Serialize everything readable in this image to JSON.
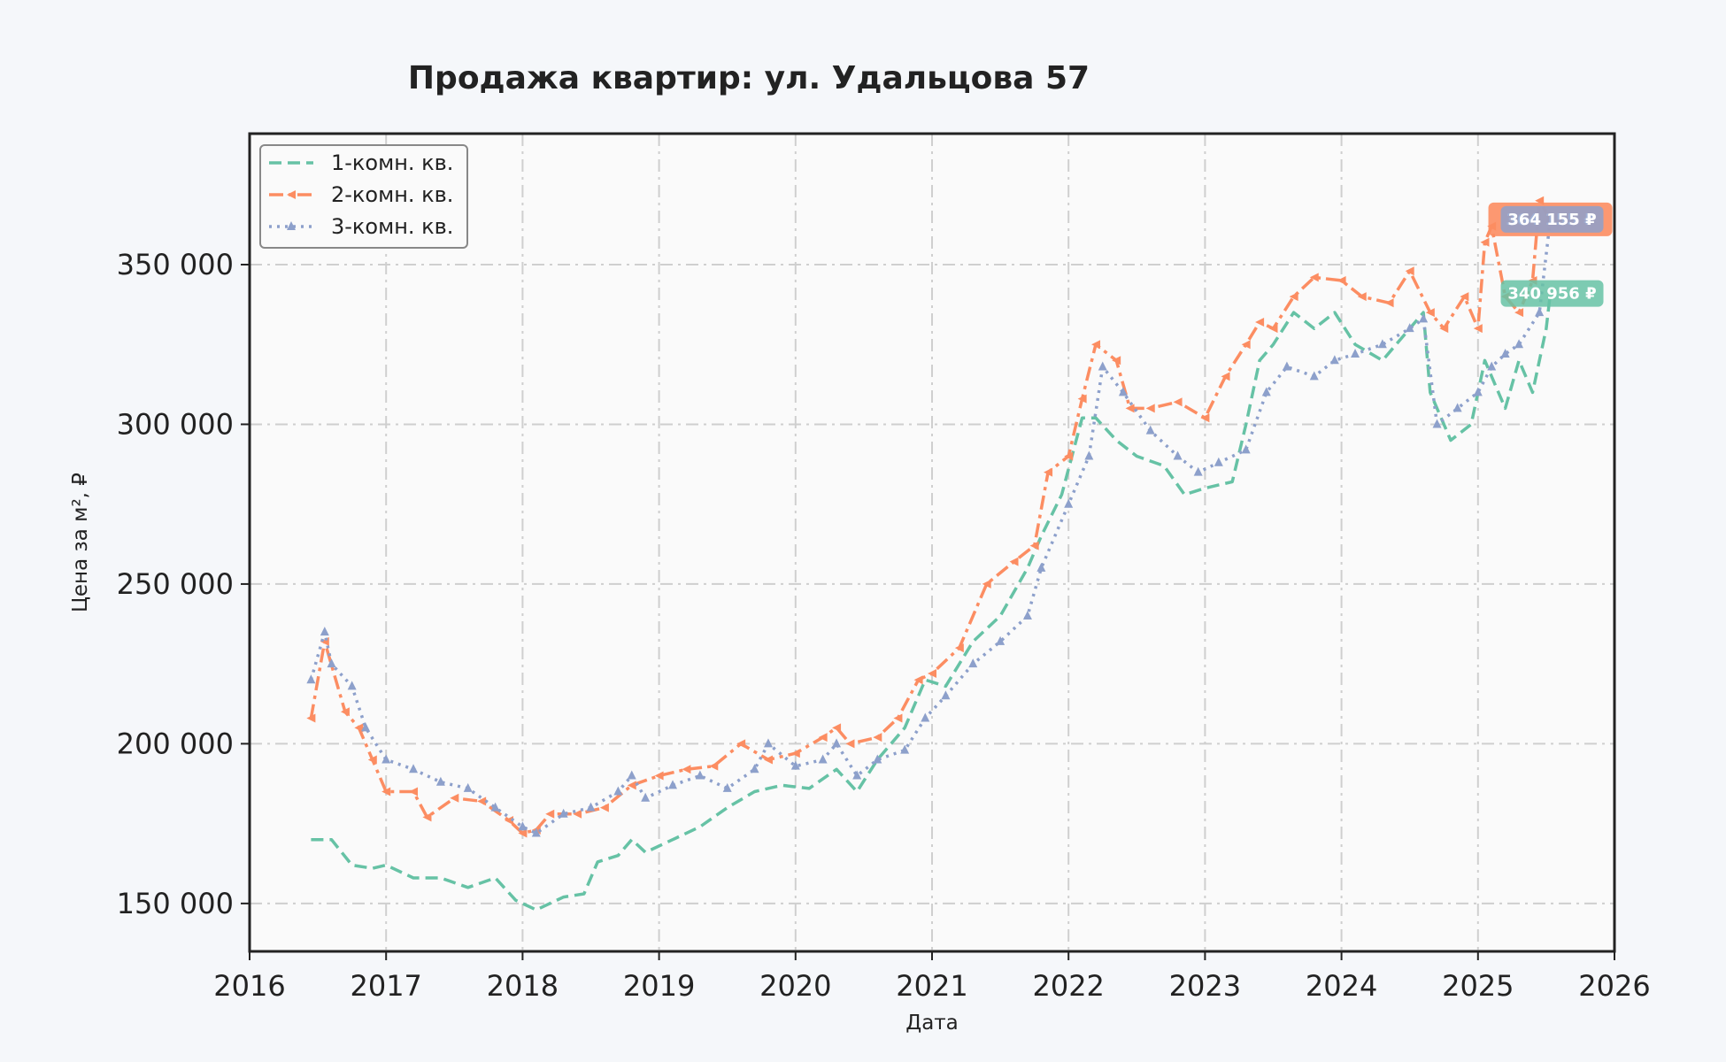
{
  "chart_data": {
    "type": "line",
    "title": "Продажа квартир: ул. Удальцова 57",
    "xlabel": "Дата",
    "ylabel": "Цена за м², ₽",
    "xlim": [
      2016,
      2026
    ],
    "ylim": [
      135000,
      391000
    ],
    "x_ticks": [
      "2016",
      "2017",
      "2018",
      "2019",
      "2020",
      "2021",
      "2022",
      "2023",
      "2024",
      "2025",
      "2026"
    ],
    "y_ticks": [
      {
        "value": 150000,
        "label": "150 000"
      },
      {
        "value": 200000,
        "label": "200 000"
      },
      {
        "value": 250000,
        "label": "250 000"
      },
      {
        "value": 300000,
        "label": "300 000"
      },
      {
        "value": 350000,
        "label": "350 000"
      }
    ],
    "grid": true,
    "legend_position": "top-left",
    "series": [
      {
        "name": "1-комн. кв.",
        "color": "#66c2a5",
        "style": "dashed",
        "x": [
          2016.45,
          2016.6,
          2016.75,
          2016.9,
          2017.0,
          2017.2,
          2017.4,
          2017.6,
          2017.8,
          2017.95,
          2018.1,
          2018.3,
          2018.45,
          2018.55,
          2018.7,
          2018.8,
          2018.9,
          2019.1,
          2019.3,
          2019.5,
          2019.7,
          2019.9,
          2020.1,
          2020.3,
          2020.45,
          2020.6,
          2020.8,
          2020.95,
          2021.1,
          2021.3,
          2021.5,
          2021.7,
          2021.8,
          2021.95,
          2022.1,
          2022.2,
          2022.35,
          2022.5,
          2022.7,
          2022.85,
          2023.0,
          2023.2,
          2023.3,
          2023.4,
          2023.5,
          2023.65,
          2023.8,
          2023.95,
          2024.1,
          2024.3,
          2024.5,
          2024.6,
          2024.65,
          2024.8,
          2024.95,
          2025.05,
          2025.2,
          2025.3,
          2025.4,
          2025.5,
          2025.53
        ],
        "values": [
          170000,
          170000,
          162000,
          161000,
          162000,
          158000,
          158000,
          155000,
          158000,
          151000,
          148000,
          152000,
          153000,
          163000,
          165000,
          170000,
          166000,
          170000,
          174000,
          180000,
          185000,
          187000,
          186000,
          192000,
          185000,
          195000,
          205000,
          220000,
          218000,
          232000,
          240000,
          255000,
          265000,
          278000,
          302000,
          302000,
          295000,
          290000,
          287000,
          278000,
          280000,
          282000,
          300000,
          320000,
          325000,
          335000,
          330000,
          335000,
          325000,
          320000,
          330000,
          335000,
          310000,
          295000,
          300000,
          320000,
          305000,
          320000,
          310000,
          330000,
          340956
        ]
      },
      {
        "name": "2-комн. кв.",
        "color": "#fc8d62",
        "style": "dashdot",
        "x": [
          2016.45,
          2016.55,
          2016.7,
          2016.8,
          2016.9,
          2017.0,
          2017.2,
          2017.3,
          2017.5,
          2017.7,
          2017.9,
          2018.0,
          2018.1,
          2018.2,
          2018.4,
          2018.6,
          2018.8,
          2019.0,
          2019.2,
          2019.4,
          2019.6,
          2019.8,
          2020.0,
          2020.2,
          2020.3,
          2020.4,
          2020.6,
          2020.75,
          2020.9,
          2021.0,
          2021.2,
          2021.4,
          2021.6,
          2021.75,
          2021.85,
          2022.0,
          2022.1,
          2022.2,
          2022.35,
          2022.45,
          2022.6,
          2022.8,
          2023.0,
          2023.15,
          2023.3,
          2023.4,
          2023.5,
          2023.65,
          2023.8,
          2024.0,
          2024.15,
          2024.35,
          2024.5,
          2024.65,
          2024.75,
          2024.9,
          2025.0,
          2025.05,
          2025.1,
          2025.2,
          2025.3,
          2025.4,
          2025.45,
          2025.53
        ],
        "values": [
          208000,
          232000,
          210000,
          205000,
          195000,
          185000,
          185000,
          177000,
          183000,
          182000,
          176000,
          172000,
          173000,
          178000,
          178000,
          180000,
          187000,
          190000,
          192000,
          193000,
          200000,
          195000,
          197000,
          202000,
          205000,
          200000,
          202000,
          208000,
          220000,
          222000,
          230000,
          250000,
          257000,
          262000,
          285000,
          290000,
          308000,
          325000,
          320000,
          305000,
          305000,
          307000,
          302000,
          315000,
          325000,
          332000,
          330000,
          340000,
          346000,
          345000,
          340000,
          338000,
          348000,
          335000,
          330000,
          340000,
          330000,
          357000,
          362000,
          340000,
          335000,
          345000,
          370000,
          364155
        ]
      },
      {
        "name": "3-комн. кв.",
        "color": "#8da0cb",
        "style": "dotted",
        "x": [
          2016.45,
          2016.55,
          2016.6,
          2016.75,
          2016.85,
          2017.0,
          2017.2,
          2017.4,
          2017.6,
          2017.8,
          2018.0,
          2018.1,
          2018.3,
          2018.5,
          2018.7,
          2018.8,
          2018.9,
          2019.1,
          2019.3,
          2019.5,
          2019.7,
          2019.8,
          2020.0,
          2020.2,
          2020.3,
          2020.45,
          2020.6,
          2020.8,
          2020.95,
          2021.1,
          2021.3,
          2021.5,
          2021.7,
          2021.8,
          2022.0,
          2022.15,
          2022.25,
          2022.4,
          2022.6,
          2022.8,
          2022.95,
          2023.1,
          2023.3,
          2023.45,
          2023.6,
          2023.8,
          2023.95,
          2024.1,
          2024.3,
          2024.5,
          2024.6,
          2024.7,
          2024.85,
          2025.0,
          2025.1,
          2025.2,
          2025.3,
          2025.45,
          2025.53
        ],
        "values": [
          220000,
          235000,
          225000,
          218000,
          205000,
          195000,
          192000,
          188000,
          186000,
          180000,
          174000,
          172000,
          178000,
          180000,
          185000,
          190000,
          183000,
          187000,
          190000,
          186000,
          192000,
          200000,
          193000,
          195000,
          200000,
          190000,
          195000,
          198000,
          208000,
          215000,
          225000,
          232000,
          240000,
          255000,
          275000,
          290000,
          318000,
          310000,
          298000,
          290000,
          285000,
          288000,
          292000,
          310000,
          318000,
          315000,
          320000,
          322000,
          325000,
          330000,
          333000,
          300000,
          305000,
          310000,
          318000,
          322000,
          325000,
          335000,
          364155
        ]
      }
    ],
    "annotations": [
      {
        "text": "364 155 ₽",
        "series": 1
      },
      {
        "text": "364 155 ₽",
        "series": 2
      },
      {
        "text": "340 956 ₽",
        "series": 0
      }
    ]
  }
}
